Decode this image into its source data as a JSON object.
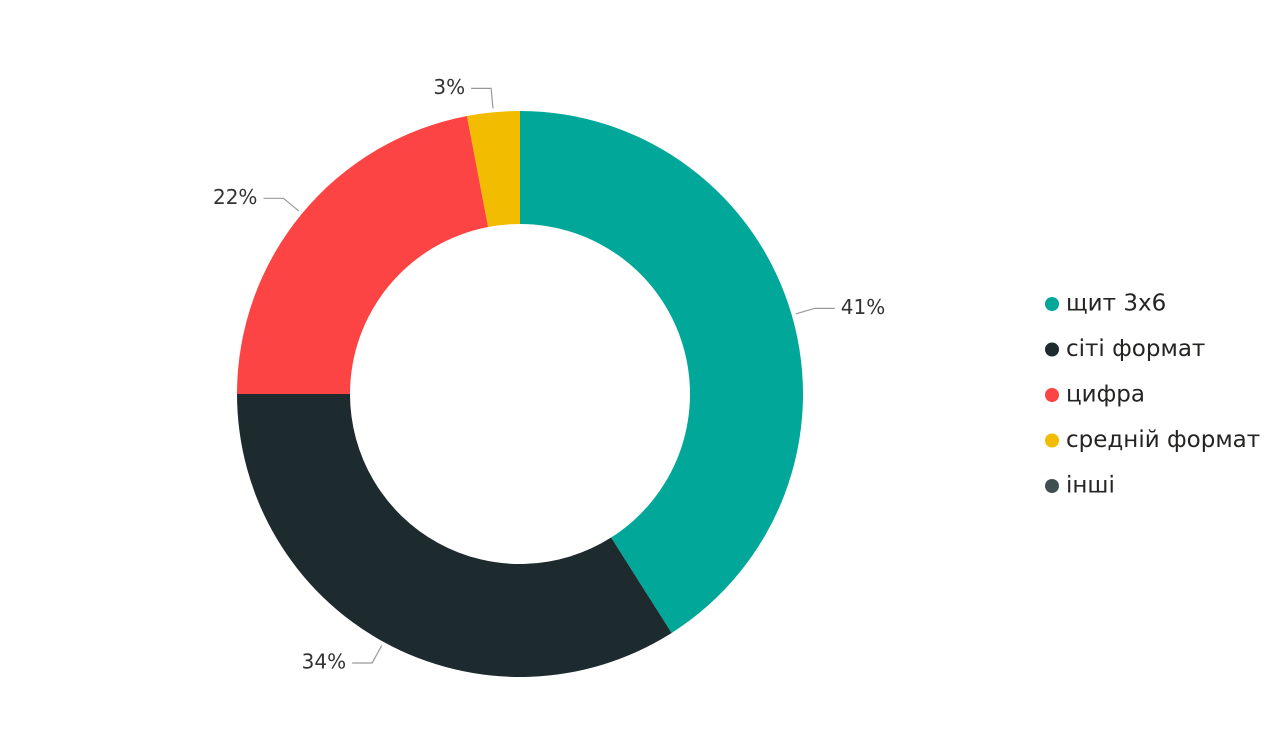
{
  "chart_data": {
    "type": "donut",
    "categories": [
      "щит 3х6",
      "сіті формат",
      "цифра",
      "средній формат",
      "інші"
    ],
    "values": [
      41,
      34,
      22,
      3,
      0
    ],
    "value_labels": [
      "41%",
      "34%",
      "22%",
      "3%",
      null
    ],
    "colors": [
      "#01a89a",
      "#1e2b2e",
      "#fd4444",
      "#f2bc00",
      "#3e4f52"
    ],
    "legend": "right"
  }
}
